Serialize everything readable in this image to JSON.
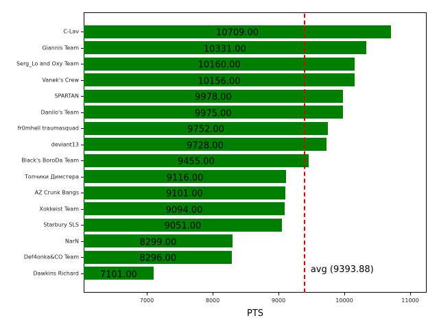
{
  "chart_data": {
    "type": "bar",
    "orientation": "horizontal",
    "title": "",
    "xlabel": "PTS",
    "ylabel": "",
    "xlim": [
      6041,
      11250
    ],
    "xticks": [
      7000,
      8000,
      9000,
      10000,
      11000
    ],
    "xtick_labels": [
      "7000",
      "8000",
      "9000",
      "10000",
      "11000"
    ],
    "grid": false,
    "bar_color": "#008000",
    "categories": [
      "C-Lav",
      "Giannis Team",
      "Serg_Lo and Oxy Team",
      "Vanek's Crew",
      "SPARTAN",
      "Danilo's Team",
      "fr0mhell traumasquad",
      "deviant13",
      "Black's BoroDa Team",
      "Топчики Димстера",
      "AZ Crunk Bangs",
      "Xokkeist Team",
      "Starbury SLS",
      "NarN",
      "Def4onka&CO Team",
      "Dawkins Richard"
    ],
    "values": [
      10709,
      10331,
      10160,
      10156,
      9978,
      9975,
      9752,
      9728,
      9455,
      9116,
      9101,
      9094,
      9051,
      8299,
      8296,
      7101
    ],
    "value_labels": [
      "10709.00",
      "10331.00",
      "10160.00",
      "10156.00",
      "9978.00",
      "9975.00",
      "9752.00",
      "9728.00",
      "9455.00",
      "9116.00",
      "9101.00",
      "9094.00",
      "9051.00",
      "8299.00",
      "8296.00",
      "7101.00"
    ],
    "reference_line": {
      "value": 9393.88,
      "label": "avg (9393.88)",
      "color": "#e00000",
      "style": "dashed"
    }
  }
}
